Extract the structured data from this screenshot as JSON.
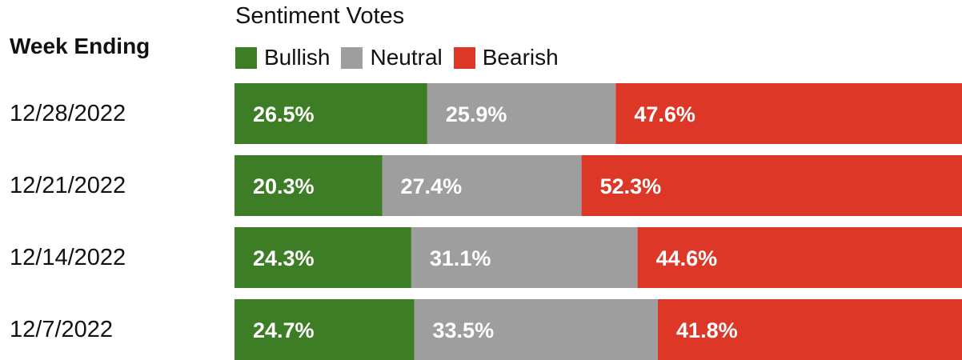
{
  "chart_data": {
    "type": "bar",
    "orientation": "horizontal",
    "stacked": true,
    "title": "Sentiment Votes",
    "row_header": "Week Ending",
    "categories": [
      "12/28/2022",
      "12/21/2022",
      "12/14/2022",
      "12/7/2022"
    ],
    "series": [
      {
        "name": "Bullish",
        "color": "#3d7d25",
        "values": [
          26.5,
          20.3,
          24.3,
          24.7
        ],
        "labels": [
          "26.5%",
          "20.3%",
          "24.3%",
          "24.7%"
        ]
      },
      {
        "name": "Neutral",
        "color": "#9e9e9e",
        "values": [
          25.9,
          27.4,
          31.1,
          33.5
        ],
        "labels": [
          "25.9%",
          "27.4%",
          "31.1%",
          "33.5%"
        ]
      },
      {
        "name": "Bearish",
        "color": "#dd3727",
        "values": [
          47.6,
          52.3,
          44.6,
          41.8
        ],
        "labels": [
          "47.6%",
          "52.3%",
          "44.6%",
          "41.8%"
        ]
      }
    ],
    "xlim": [
      0,
      100
    ],
    "legend": "top",
    "grid": false
  }
}
